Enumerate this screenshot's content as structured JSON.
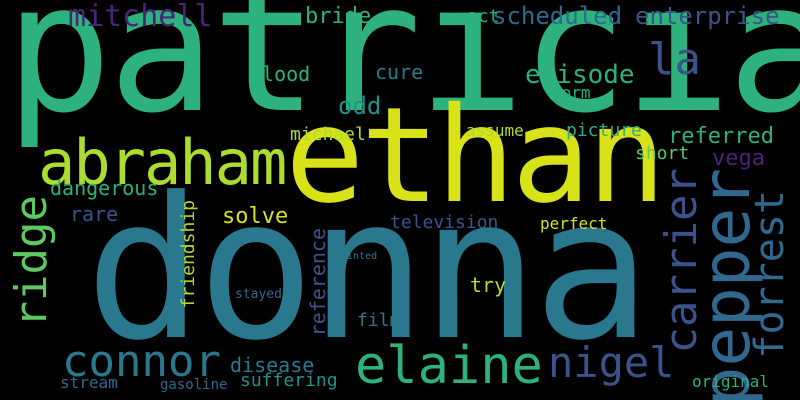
{
  "words": {
    "patricia": "patricia",
    "donna": "donna",
    "ethan": "ethan",
    "abraham": "abraham",
    "pepper": "pepper",
    "connor": "connor",
    "elaine": "elaine",
    "nigel": "nigel",
    "carrier": "carrier",
    "forrest": "forrest",
    "ridge": "ridge",
    "mitchell": "mitchell",
    "scheduled": "scheduled",
    "enterprise": "enterprise",
    "la": "la",
    "bride": "bride",
    "act": "act",
    "episode": "episode",
    "blood": "blood",
    "cure": "cure",
    "odd": "odd",
    "form": "form",
    "michael": "michael",
    "assume": "assume",
    "picture": "picture",
    "referred": "referred",
    "short": "short",
    "vega": "vega",
    "dangerous": "dangerous",
    "rare": "rare",
    "solve": "solve",
    "friendship": "friendship",
    "television": "television",
    "perfect": "perfect",
    "reference": "reference",
    "film": "film",
    "try": "try",
    "stayed": "stayed",
    "disease": "disease",
    "suffering": "suffering",
    "stream": "stream",
    "gasoline": "gasoline",
    "original": "original",
    "painted": "painted"
  },
  "colors": {
    "background": "#000000",
    "green": "#2db27d",
    "yellow": "#d8e219",
    "lime": "#5ec962",
    "teal": "#2a788e",
    "blue": "#31688e",
    "indigo": "#3b528b",
    "purple": "#482475",
    "cyan": "#21918c",
    "olive": "#addc30"
  }
}
